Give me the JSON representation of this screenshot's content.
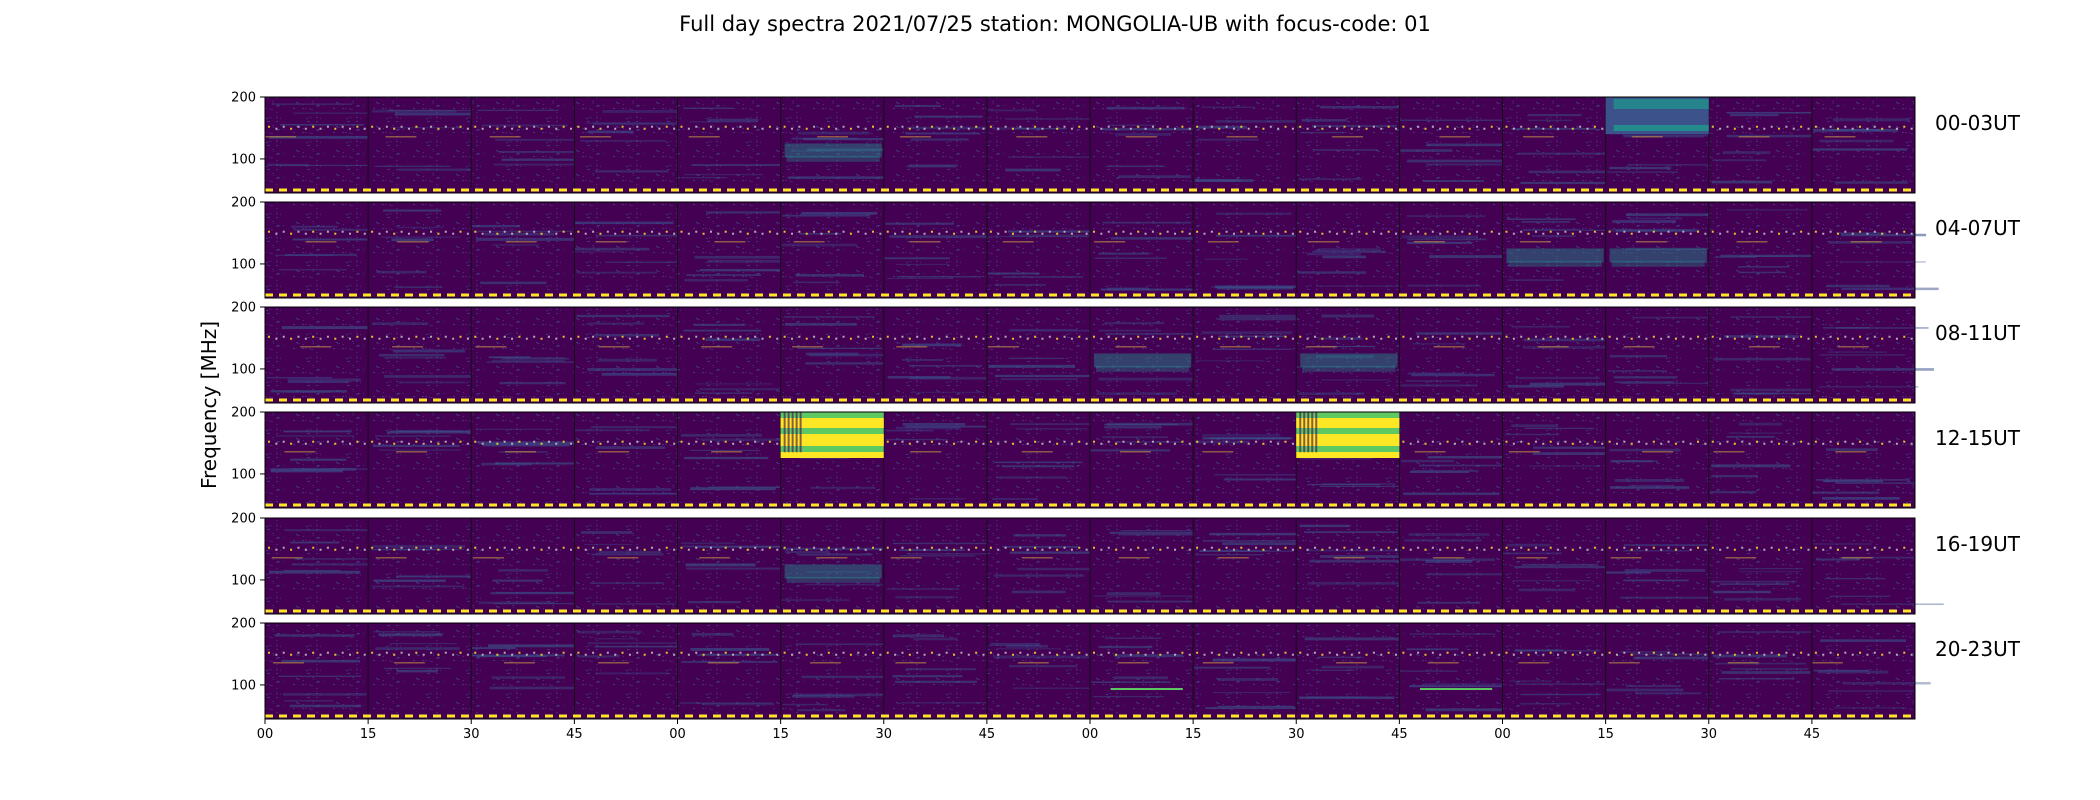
{
  "figure": {
    "title": "Full day spectra 2021/07/25 station: MONGOLIA-UB with focus-code: 01"
  },
  "chart_data": {
    "type": "heatmap",
    "title": "Full day spectra 2021/07/25 station: MONGOLIA-UB with focus-code: 01",
    "ylabel": "Frequency [MHz]",
    "xlabel": "",
    "ylim": [
      45,
      200
    ],
    "y_ticks": [
      "200",
      "100"
    ],
    "x_ticks": [
      "00",
      "15",
      "30",
      "45",
      "00",
      "15",
      "30",
      "45",
      "00",
      "15",
      "30",
      "45",
      "00",
      "15",
      "30",
      "45"
    ],
    "panels_per_row": 16,
    "panel_minutes": 15,
    "colormap": "viridis",
    "colors": {
      "background": "#440154",
      "low": "#3b528b",
      "mid": "#21918c",
      "high": "#5ec962",
      "max": "#fde725"
    },
    "rows": [
      {
        "label": "00-03UT",
        "events": [
          {
            "panel": 5,
            "strength": "weak"
          },
          {
            "panel": 13,
            "strength": "medium"
          }
        ]
      },
      {
        "label": "04-07UT",
        "events": [
          {
            "panel": 12,
            "strength": "weak"
          },
          {
            "panel": 13,
            "strength": "weak"
          }
        ]
      },
      {
        "label": "08-11UT",
        "events": [
          {
            "panel": 8,
            "strength": "weak"
          },
          {
            "panel": 10,
            "strength": "weak"
          }
        ]
      },
      {
        "label": "12-15UT",
        "events": [
          {
            "panel": 5,
            "strength": "strong"
          },
          {
            "panel": 10,
            "strength": "strong"
          }
        ]
      },
      {
        "label": "16-19UT",
        "events": [
          {
            "panel": 5,
            "strength": "weak"
          }
        ]
      },
      {
        "label": "20-23UT",
        "events": [
          {
            "panel": 8,
            "strength": "line"
          },
          {
            "panel": 11,
            "strength": "line"
          }
        ]
      }
    ]
  }
}
